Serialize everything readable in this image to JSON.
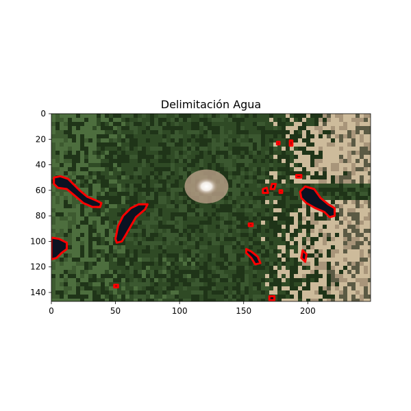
{
  "chart_data": {
    "type": "image",
    "title": "Delimitación Agua",
    "xlabel": "",
    "ylabel": "",
    "image_width": 249,
    "image_height": 147,
    "xlim": [
      0,
      249
    ],
    "ylim": [
      147,
      0
    ],
    "x_ticks": [
      0,
      50,
      100,
      150,
      200
    ],
    "y_ticks": [
      0,
      20,
      40,
      60,
      80,
      100,
      120,
      140
    ],
    "grid": false,
    "legend": "none",
    "colors": {
      "water_outline": "#ff0000",
      "water_fill": "#0b1222",
      "forest": "#2f4a25",
      "forest_dark": "#1f3418",
      "field": "#4d6e3e",
      "bare_rock": "#cdbb9b",
      "snow": "#ffffff"
    },
    "background_features": [
      {
        "name": "snow-peak",
        "type": "snow",
        "cx": 121,
        "cy": 57,
        "rx": 9,
        "ry": 7
      }
    ],
    "water_bodies": [
      {
        "name": "lake-1",
        "points": [
          [
            2,
            50
          ],
          [
            7,
            49
          ],
          [
            13,
            51
          ],
          [
            17,
            55
          ],
          [
            22,
            60
          ],
          [
            28,
            65
          ],
          [
            35,
            68
          ],
          [
            39,
            70
          ],
          [
            38,
            73
          ],
          [
            32,
            73
          ],
          [
            25,
            70
          ],
          [
            18,
            64
          ],
          [
            12,
            59
          ],
          [
            5,
            58
          ],
          [
            2,
            55
          ]
        ]
      },
      {
        "name": "lake-2",
        "points": [
          [
            50,
            98
          ],
          [
            52,
            88
          ],
          [
            56,
            80
          ],
          [
            62,
            74
          ],
          [
            68,
            71
          ],
          [
            75,
            71
          ],
          [
            73,
            75
          ],
          [
            66,
            81
          ],
          [
            62,
            88
          ],
          [
            58,
            95
          ],
          [
            55,
            100
          ],
          [
            51,
            101
          ]
        ]
      },
      {
        "name": "lake-3",
        "points": [
          [
            0,
            97
          ],
          [
            6,
            98
          ],
          [
            12,
            101
          ],
          [
            12,
            106
          ],
          [
            8,
            109
          ],
          [
            4,
            113
          ],
          [
            0,
            114
          ]
        ]
      },
      {
        "name": "lake-4",
        "points": [
          [
            194,
            61
          ],
          [
            198,
            57
          ],
          [
            205,
            59
          ],
          [
            210,
            66
          ],
          [
            216,
            71
          ],
          [
            221,
            74
          ],
          [
            221,
            80
          ],
          [
            217,
            81
          ],
          [
            213,
            77
          ],
          [
            206,
            74
          ],
          [
            199,
            70
          ],
          [
            195,
            66
          ]
        ]
      },
      {
        "name": "lake-5",
        "points": [
          [
            152,
            106
          ],
          [
            156,
            108
          ],
          [
            161,
            112
          ],
          [
            163,
            117
          ],
          [
            159,
            118
          ],
          [
            156,
            113
          ],
          [
            152,
            109
          ]
        ]
      },
      {
        "name": "pond-1",
        "points": [
          [
            186,
            21
          ],
          [
            188,
            21
          ],
          [
            188,
            25
          ],
          [
            186,
            25
          ]
        ]
      },
      {
        "name": "pond-2",
        "points": [
          [
            176,
            22
          ],
          [
            178,
            22
          ],
          [
            178,
            24
          ],
          [
            176,
            24
          ]
        ]
      },
      {
        "name": "pond-3",
        "points": [
          [
            165,
            59
          ],
          [
            168,
            58
          ],
          [
            169,
            62
          ],
          [
            165,
            62
          ]
        ]
      },
      {
        "name": "pond-4",
        "points": [
          [
            172,
            55
          ],
          [
            175,
            55
          ],
          [
            174,
            59
          ],
          [
            171,
            59
          ]
        ]
      },
      {
        "name": "pond-5",
        "points": [
          [
            191,
            48
          ],
          [
            195,
            48
          ],
          [
            195,
            50
          ],
          [
            191,
            50
          ]
        ]
      },
      {
        "name": "pond-6",
        "points": [
          [
            196,
            107
          ],
          [
            199,
            110
          ],
          [
            198,
            116
          ],
          [
            195,
            113
          ]
        ]
      },
      {
        "name": "pond-7",
        "points": [
          [
            170,
            143
          ],
          [
            174,
            143
          ],
          [
            174,
            146
          ],
          [
            170,
            146
          ]
        ]
      },
      {
        "name": "pond-8",
        "points": [
          [
            154,
            86
          ],
          [
            157,
            86
          ],
          [
            157,
            88
          ],
          [
            154,
            88
          ]
        ]
      },
      {
        "name": "pond-9",
        "points": [
          [
            49,
            134
          ],
          [
            52,
            134
          ],
          [
            52,
            136
          ],
          [
            49,
            136
          ]
        ]
      },
      {
        "name": "pond-10",
        "points": [
          [
            178,
            60
          ],
          [
            180,
            60
          ],
          [
            180,
            62
          ],
          [
            178,
            62
          ]
        ]
      }
    ]
  }
}
